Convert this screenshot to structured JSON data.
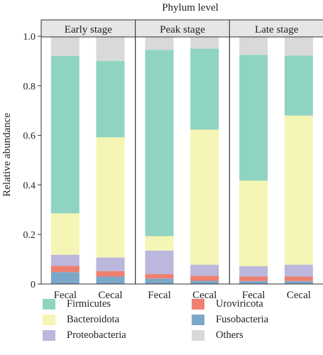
{
  "chart_data": {
    "type": "bar",
    "stacked": true,
    "title": "Phylum level",
    "ylabel": "Relative abundance",
    "xlabel": "",
    "ylim": [
      0,
      1.0
    ],
    "yticks": [
      "0",
      "0.2",
      "0.4",
      "0.6",
      "0.8",
      "1.0"
    ],
    "grid": false,
    "legend_position": "bottom",
    "panels": [
      {
        "label": "Early stage",
        "categories": [
          "Fecal",
          "Cecal"
        ]
      },
      {
        "label": "Peak stage",
        "categories": [
          "Fecal",
          "Cecal"
        ]
      },
      {
        "label": "Late stage",
        "categories": [
          "Fecal",
          "Cecal"
        ]
      }
    ],
    "categories": [
      "Early stage Fecal",
      "Early stage Cecal",
      "Peak stage Fecal",
      "Peak stage Cecal",
      "Late stage Fecal",
      "Late stage Cecal"
    ],
    "series": [
      {
        "name": "Fusobacteria",
        "color": "#7ba7c9",
        "values": [
          0.048,
          0.03,
          0.022,
          0.013,
          0.012,
          0.012
        ]
      },
      {
        "name": "Uroviricota",
        "color": "#ef8070",
        "values": [
          0.025,
          0.022,
          0.018,
          0.02,
          0.018,
          0.018
        ]
      },
      {
        "name": "Proteobacteria",
        "color": "#bcb7dc",
        "values": [
          0.045,
          0.055,
          0.095,
          0.045,
          0.042,
          0.048
        ]
      },
      {
        "name": "Bacteroidota",
        "color": "#f5f5b5",
        "values": [
          0.167,
          0.485,
          0.058,
          0.545,
          0.345,
          0.602
        ]
      },
      {
        "name": "Firmicutes",
        "color": "#8fd4c1",
        "values": [
          0.635,
          0.308,
          0.752,
          0.327,
          0.508,
          0.242
        ]
      },
      {
        "name": "Others",
        "color": "#d9d9d9",
        "values": [
          0.08,
          0.1,
          0.055,
          0.05,
          0.075,
          0.078
        ]
      }
    ]
  },
  "legend": {
    "items": [
      {
        "name": "Firmicutes",
        "color": "#8fd4c1"
      },
      {
        "name": "Bacteroidota",
        "color": "#f5f5b5"
      },
      {
        "name": "Proteobacteria",
        "color": "#bcb7dc"
      },
      {
        "name": "Uroviricota",
        "color": "#ef8070"
      },
      {
        "name": "Fusobacteria",
        "color": "#7ba7c9"
      },
      {
        "name": "Others",
        "color": "#d9d9d9"
      }
    ]
  }
}
